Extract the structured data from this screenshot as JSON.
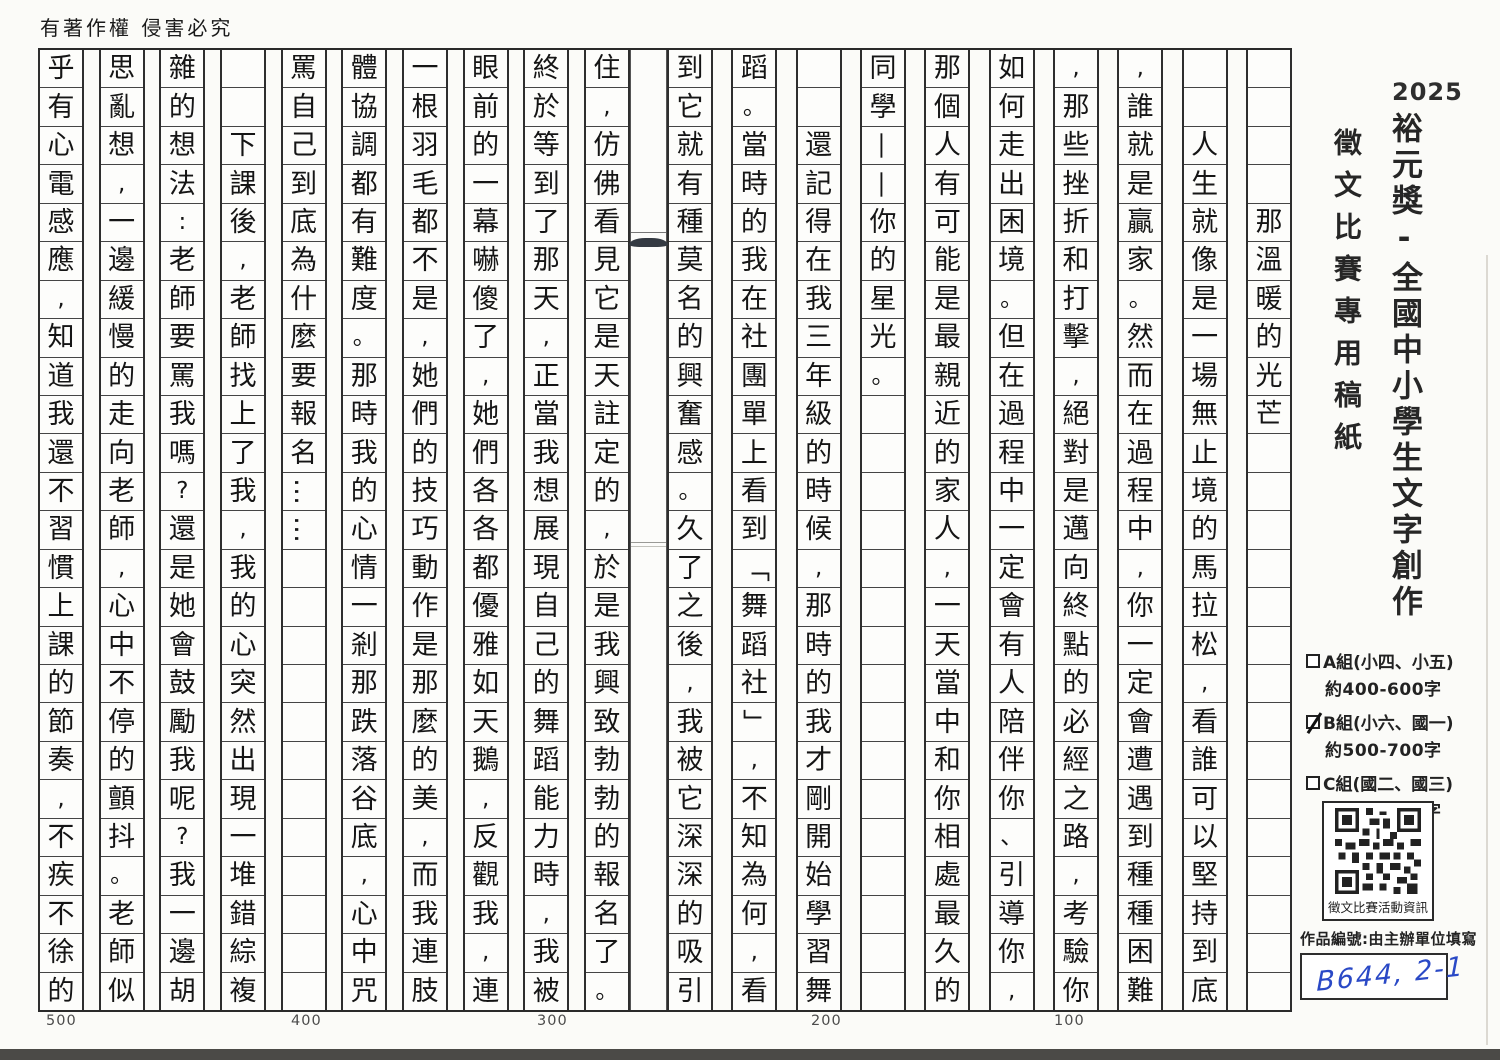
{
  "header": {
    "copyright": "有著作權 侵害必究"
  },
  "sidebar": {
    "year": "2025",
    "main_title": "裕元獎-全國中小學生文字創作",
    "subtitle": "徵文比賽專用稿紙",
    "groups": [
      {
        "label": "A組(小四、小五)",
        "words": "約400-600字",
        "checked": false
      },
      {
        "label": "B組(小六、國一)",
        "words": "約500-700字",
        "checked": true
      },
      {
        "label": "C組(國二、國三)",
        "words": "約600-800字",
        "checked": false
      }
    ],
    "qr_caption": "徵文比賽活動資訊",
    "entry_label": "作品編號:由主辦單位填寫",
    "entry_value": "B644, 2-1"
  },
  "manuscript": {
    "essay_title": "那溫暖的光芒",
    "cells_per_column": 25,
    "ruler_marks": [
      "500",
      "400",
      "300",
      "200",
      "100"
    ],
    "columns_right_to_left": [
      [
        "",
        "",
        "",
        "",
        "那",
        "溫",
        "暖",
        "的",
        "光",
        "芒",
        "",
        "",
        "",
        "",
        "",
        "",
        "",
        "",
        "",
        "",
        "",
        "",
        "",
        "",
        ""
      ],
      [
        "",
        "",
        "人",
        "生",
        "就",
        "像",
        "是",
        "一",
        "場",
        "無",
        "止",
        "境",
        "的",
        "馬",
        "拉",
        "松",
        ",",
        "看",
        "誰",
        "可",
        "以",
        "堅",
        "持",
        "到",
        "底"
      ],
      [
        ",",
        "誰",
        "就",
        "是",
        "贏",
        "家",
        "。",
        "然",
        "而",
        "在",
        "過",
        "程",
        "中",
        ",",
        "你",
        "一",
        "定",
        "會",
        "遭",
        "遇",
        "到",
        "種",
        "種",
        "困",
        "難"
      ],
      [
        ",",
        "那",
        "些",
        "挫",
        "折",
        "和",
        "打",
        "擊",
        ",",
        "絕",
        "對",
        "是",
        "邁",
        "向",
        "終",
        "點",
        "的",
        "必",
        "經",
        "之",
        "路",
        ",",
        "考",
        "驗",
        "你"
      ],
      [
        "如",
        "何",
        "走",
        "出",
        "困",
        "境",
        "。",
        "但",
        "在",
        "過",
        "程",
        "中",
        "一",
        "定",
        "會",
        "有",
        "人",
        "陪",
        "伴",
        "你",
        "、",
        "引",
        "導",
        "你",
        ","
      ],
      [
        "那",
        "個",
        "人",
        "有",
        "可",
        "能",
        "是",
        "最",
        "親",
        "近",
        "的",
        "家",
        "人",
        ",",
        "一",
        "天",
        "當",
        "中",
        "和",
        "你",
        "相",
        "處",
        "最",
        "久",
        "的"
      ],
      [
        "同",
        "學",
        "—",
        "—",
        "你",
        "的",
        "星",
        "光",
        "。",
        "",
        "",
        "",
        "",
        "",
        "",
        "",
        "",
        "",
        "",
        "",
        "",
        "",
        "",
        "",
        ""
      ],
      [
        "",
        "",
        "還",
        "記",
        "得",
        "在",
        "我",
        "三",
        "年",
        "級",
        "的",
        "時",
        "候",
        ",",
        "那",
        "時",
        "的",
        "我",
        "才",
        "剛",
        "開",
        "始",
        "學",
        "習",
        "舞"
      ],
      [
        "蹈",
        "。",
        "當",
        "時",
        "的",
        "我",
        "在",
        "社",
        "團",
        "單",
        "上",
        "看",
        "到",
        "「",
        "舞",
        "蹈",
        "社",
        "」",
        ",",
        "不",
        "知",
        "為",
        "何",
        ",",
        "看"
      ],
      [
        "到",
        "它",
        "就",
        "有",
        "種",
        "莫",
        "名",
        "的",
        "興",
        "奮",
        "感",
        "。",
        "久",
        "了",
        "之",
        "後",
        ",",
        "我",
        "被",
        "它",
        "深",
        "深",
        "的",
        "吸",
        "引"
      ],
      [
        "住",
        ",",
        "仿",
        "佛",
        "看",
        "見",
        "它",
        "是",
        "天",
        "註",
        "定",
        "的",
        ",",
        "於",
        "是",
        "我",
        "興",
        "致",
        "勃",
        "勃",
        "的",
        "報",
        "名",
        "了",
        "。"
      ],
      [
        "終",
        "於",
        "等",
        "到",
        "了",
        "那",
        "天",
        ",",
        "正",
        "當",
        "我",
        "想",
        "展",
        "現",
        "自",
        "己",
        "的",
        "舞",
        "蹈",
        "能",
        "力",
        "時",
        ",",
        "我",
        "被"
      ],
      [
        "眼",
        "前",
        "的",
        "一",
        "幕",
        "嚇",
        "傻",
        "了",
        ",",
        "她",
        "們",
        "各",
        "各",
        "都",
        "優",
        "雅",
        "如",
        "天",
        "鵝",
        ",",
        "反",
        "觀",
        "我",
        ",",
        "連"
      ],
      [
        "一",
        "根",
        "羽",
        "毛",
        "都",
        "不",
        "是",
        ",",
        "她",
        "們",
        "的",
        "技",
        "巧",
        "動",
        "作",
        "是",
        "那",
        "麼",
        "的",
        "美",
        ",",
        "而",
        "我",
        "連",
        "肢"
      ],
      [
        "體",
        "協",
        "調",
        "都",
        "有",
        "難",
        "度",
        "。",
        "那",
        "時",
        "我",
        "的",
        "心",
        "情",
        "一",
        "剎",
        "那",
        "跌",
        "落",
        "谷",
        "底",
        ",",
        "心",
        "中",
        "咒"
      ],
      [
        "罵",
        "自",
        "己",
        "到",
        "底",
        "為",
        "什",
        "麼",
        "要",
        "報",
        "名",
        "…",
        "…",
        "",
        "",
        "",
        "",
        "",
        "",
        "",
        "",
        "",
        "",
        "",
        ""
      ],
      [
        "",
        "",
        "下",
        "課",
        "後",
        ",",
        "老",
        "師",
        "找",
        "上",
        "了",
        "我",
        ",",
        "我",
        "的",
        "心",
        "突",
        "然",
        "出",
        "現",
        "一",
        "堆",
        "錯",
        "綜",
        "複"
      ],
      [
        "雜",
        "的",
        "想",
        "法",
        ":",
        "老",
        "師",
        "要",
        "罵",
        "我",
        "嗎",
        "?",
        "還",
        "是",
        "她",
        "會",
        "鼓",
        "勵",
        "我",
        "呢",
        "?",
        "我",
        "一",
        "邊",
        "胡"
      ],
      [
        "思",
        "亂",
        "想",
        ",",
        "一",
        "邊",
        "緩",
        "慢",
        "的",
        "走",
        "向",
        "老",
        "師",
        ",",
        "心",
        "中",
        "不",
        "停",
        "的",
        "顫",
        "抖",
        "。",
        "老",
        "師",
        "似"
      ],
      [
        "乎",
        "有",
        "心",
        "電",
        "感",
        "應",
        ",",
        "知",
        "道",
        "我",
        "還",
        "不",
        "習",
        "慣",
        "上",
        "課",
        "的",
        "節",
        "奏",
        ",",
        "不",
        "疾",
        "不",
        "徐",
        "的"
      ]
    ]
  }
}
